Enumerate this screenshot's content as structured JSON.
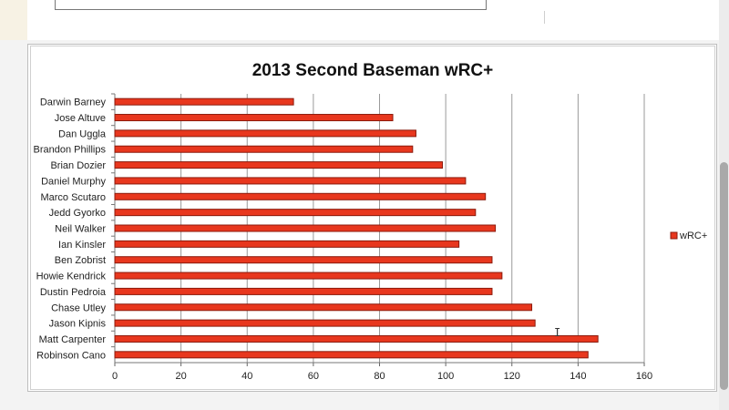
{
  "chart_data": {
    "type": "bar",
    "orientation": "horizontal",
    "title": "2013 Second Baseman wRC+",
    "categories": [
      "Darwin Barney",
      "Jose Altuve",
      "Dan Uggla",
      "Brandon Phillips",
      "Brian Dozier",
      "Daniel Murphy",
      "Marco Scutaro",
      "Jedd Gyorko",
      "Neil Walker",
      "Ian Kinsler",
      "Ben Zobrist",
      "Howie Kendrick",
      "Dustin Pedroia",
      "Chase Utley",
      "Jason Kipnis",
      "Matt Carpenter",
      "Robinson Cano"
    ],
    "series": [
      {
        "name": "wRC+",
        "values": [
          54,
          84,
          91,
          90,
          99,
          106,
          112,
          109,
          115,
          104,
          114,
          117,
          114,
          126,
          127,
          146,
          143
        ]
      }
    ],
    "xlim": [
      0,
      160
    ],
    "x_ticks": [
      "0",
      "20",
      "40",
      "60",
      "80",
      "100",
      "120",
      "140",
      "160"
    ],
    "grid": "vertical",
    "legend_position": "right",
    "bar_color": "#e8371e",
    "bar_edge_color": "#8b1a0c"
  }
}
